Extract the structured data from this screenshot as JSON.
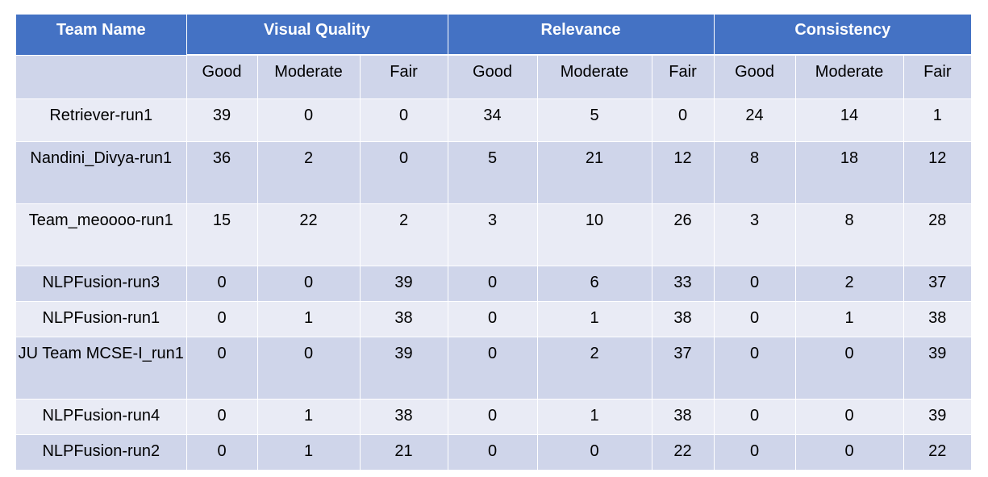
{
  "header": {
    "team_name": "Team Name",
    "groups": [
      "Visual Quality",
      "Relevance",
      "Consistency"
    ],
    "subheaders": [
      "Good",
      "Moderate",
      "Fair",
      "Good",
      "Moderate",
      "Fair",
      "Good",
      "Moderate",
      "Fair"
    ]
  },
  "rows": [
    {
      "team": "Retriever-run1",
      "values": [
        "39",
        "0",
        "0",
        "34",
        "5",
        "0",
        "24",
        "14",
        "1"
      ]
    },
    {
      "team": "Nandini_Divya-run1",
      "values": [
        "36",
        "2",
        "0",
        "5",
        "21",
        "12",
        "8",
        "18",
        "12"
      ]
    },
    {
      "team": "Team_meoooo-run1",
      "values": [
        "15",
        "22",
        "2",
        "3",
        "10",
        "26",
        "3",
        "8",
        "28"
      ]
    },
    {
      "team": "NLPFusion-run3",
      "values": [
        "0",
        "0",
        "39",
        "0",
        "6",
        "33",
        "0",
        "2",
        "37"
      ]
    },
    {
      "team": "NLPFusion-run1",
      "values": [
        "0",
        "1",
        "38",
        "0",
        "1",
        "38",
        "0",
        "1",
        "38"
      ]
    },
    {
      "team": "JU Team MCSE-I_run1",
      "values": [
        "0",
        "0",
        "39",
        "0",
        "2",
        "37",
        "0",
        "0",
        "39"
      ]
    },
    {
      "team": "NLPFusion-run4",
      "values": [
        "0",
        "1",
        "38",
        "0",
        "1",
        "38",
        "0",
        "0",
        "39"
      ]
    },
    {
      "team": "NLPFusion-run2",
      "values": [
        "0",
        "1",
        "21",
        "0",
        "0",
        "22",
        "0",
        "0",
        "22"
      ]
    }
  ],
  "colors": {
    "header_bg": "#4472c4",
    "row_dark": "#cfd5ea",
    "row_light": "#e9ebf5"
  }
}
